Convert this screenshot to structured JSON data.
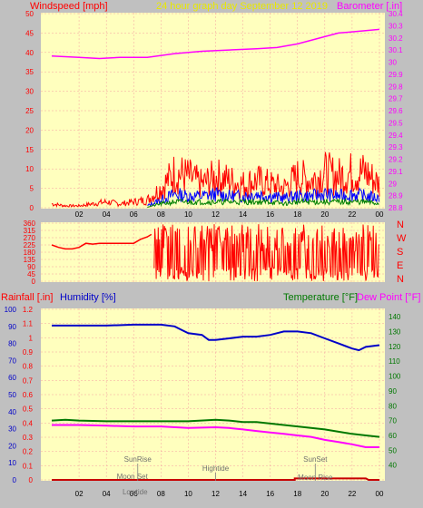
{
  "header": {
    "windspeed_label": "Windspeed [mph]",
    "title": "24 hour graph day   September 12 2019",
    "barometer_label": "Barometer [.in]"
  },
  "panel2": {
    "compass": [
      "N",
      "W",
      "S",
      "E",
      "N"
    ]
  },
  "panel3": {
    "rainfall_label": "Rainfall [.in]",
    "humidity_label": "Humidity [%]",
    "temperature_label": "Temperature [°F]",
    "dewpoint_label": "Dew Point [°F]"
  },
  "events": {
    "sunrise": "SunRise",
    "moonset": "Moon Set",
    "lowtide": "Lowtide",
    "hightide": "Hightide",
    "sunset": "SunSet",
    "moonrise": "Moon Rise"
  },
  "colors": {
    "background": "#c0c0c0",
    "plot_bg": "#ffffbe",
    "wind": "#ff0000",
    "gust_avg": "#0000ff",
    "wind_low": "#008000",
    "barometer": "#ff00ff",
    "humidity": "#0000c8",
    "temperature": "#007800",
    "dewpoint": "#ff00ff",
    "rainfall": "#c80000",
    "title": "#e8e800"
  },
  "chart_data": [
    {
      "type": "line",
      "name": "wind-barometer",
      "x_ticks": [
        "02",
        "04",
        "06",
        "08",
        "10",
        "12",
        "14",
        "16",
        "18",
        "20",
        "22",
        "00"
      ],
      "y_left_ticks": [
        "0",
        "5",
        "10",
        "15",
        "20",
        "25",
        "30",
        "35",
        "40",
        "45",
        "50"
      ],
      "y_left_lim": [
        0,
        50
      ],
      "y_right_ticks": [
        "28.8",
        "28.9",
        "29",
        "29.1",
        "29.2",
        "29.3",
        "29.4",
        "29.5",
        "29.6",
        "29.7",
        "29.8",
        "29.9",
        "30",
        "30.1",
        "30.2",
        "30.3",
        "30.4"
      ],
      "y_right_lim": [
        28.8,
        30.4
      ],
      "barometer": {
        "x": [
          0,
          2,
          3.5,
          5,
          7,
          9,
          11,
          13,
          15,
          16.5,
          18,
          19,
          20,
          21,
          22,
          23,
          24
        ],
        "y": [
          30.05,
          30.04,
          30.03,
          30.04,
          30.04,
          30.07,
          30.09,
          30.1,
          30.11,
          30.12,
          30.15,
          30.18,
          30.21,
          30.24,
          30.25,
          30.26,
          30.27
        ]
      },
      "wind_speed": {
        "x": [
          0,
          1,
          2,
          3,
          4,
          5,
          6,
          7,
          8,
          9,
          10,
          11,
          12,
          13,
          14,
          15,
          16,
          17,
          18,
          19,
          20,
          21,
          22,
          23,
          24
        ],
        "y": [
          1,
          0.5,
          0.5,
          1,
          1.5,
          1,
          1.5,
          2,
          5,
          9,
          8,
          6,
          8,
          7,
          6,
          7,
          6,
          5,
          8,
          7,
          9,
          8,
          9,
          9,
          6
        ]
      },
      "gust_average": {
        "x": [
          7,
          8,
          9,
          10,
          11,
          12,
          13,
          14,
          15,
          16,
          17,
          18,
          19,
          20,
          21,
          22,
          23,
          24
        ],
        "y": [
          0.5,
          2,
          3.5,
          3,
          3,
          3.5,
          3,
          3,
          3.5,
          3,
          2.5,
          3,
          3,
          3.5,
          3,
          3.5,
          3,
          2.5
        ]
      },
      "wind_low": {
        "x": [
          7,
          8,
          9,
          10,
          11,
          12,
          13,
          14,
          15,
          16,
          17,
          18,
          19,
          20,
          21,
          22,
          23,
          24
        ],
        "y": [
          0.2,
          1,
          1.5,
          1.5,
          1.5,
          1.5,
          1.5,
          1.5,
          1.5,
          1.5,
          1,
          1.5,
          1.5,
          1.5,
          1.5,
          1.5,
          1.5,
          1
        ]
      }
    },
    {
      "type": "line",
      "name": "wind-direction",
      "y_ticks": [
        "0",
        "45",
        "90",
        "135",
        "180",
        "225",
        "270",
        "315",
        "360"
      ],
      "ylim": [
        0,
        360
      ],
      "segments": [
        {
          "x": [
            0,
            0.5,
            1,
            1.5,
            2,
            2.5,
            3,
            3.5,
            4,
            4.5,
            5,
            5.5,
            6,
            6.5,
            7,
            7.3
          ],
          "y": [
            225,
            210,
            200,
            200,
            210,
            235,
            230,
            235,
            235,
            235,
            235,
            235,
            235,
            260,
            275,
            290
          ]
        },
        {
          "x": [
            7.5,
            24
          ],
          "y": [
            0,
            360
          ],
          "style": "dense"
        }
      ]
    },
    {
      "type": "line",
      "name": "rain-humidity-temperature",
      "x_ticks": [
        "02",
        "04",
        "06",
        "08",
        "10",
        "12",
        "14",
        "16",
        "18",
        "20",
        "22",
        "00"
      ],
      "y_left_ticks": [
        "0",
        "0.1",
        "0.2",
        "0.3",
        "0.4",
        "0.5",
        "0.6",
        "0.7",
        "0.8",
        "0.9",
        "1",
        "1.1",
        "1.2"
      ],
      "y_left_lim": [
        0,
        1.2
      ],
      "y_humidity_ticks": [
        "0",
        "10",
        "20",
        "30",
        "40",
        "50",
        "60",
        "70",
        "80",
        "90",
        "100"
      ],
      "y_humidity_lim": [
        0,
        100
      ],
      "y_right_ticks": [
        "40",
        "50",
        "60",
        "70",
        "80",
        "90",
        "100",
        "110",
        "120",
        "130",
        "140"
      ],
      "y_right_lim": [
        30,
        145
      ],
      "humidity": {
        "x": [
          0,
          2,
          4,
          6,
          8,
          9,
          9.5,
          10,
          11,
          11.5,
          12,
          13,
          14,
          15,
          16,
          17,
          18,
          19,
          20,
          21,
          22,
          22.5,
          23,
          24
        ],
        "y": [
          90.5,
          90.5,
          90.5,
          91,
          91,
          90,
          88,
          86,
          85,
          82,
          82,
          83,
          84,
          84,
          85,
          87,
          87,
          86,
          83,
          80,
          77,
          76,
          78,
          79
        ]
      },
      "temperature": {
        "x": [
          0,
          1,
          2,
          4,
          6,
          8,
          10,
          12,
          13,
          14,
          15,
          16,
          17,
          18,
          19,
          20,
          21,
          22,
          23,
          24
        ],
        "y": [
          70,
          70.5,
          70,
          69.5,
          69.5,
          69.5,
          69.5,
          70.5,
          70,
          69,
          69,
          68,
          67,
          66,
          65,
          64,
          62.5,
          61,
          60,
          59
        ]
      },
      "dewpoint": {
        "x": [
          0,
          1,
          2,
          4,
          6,
          8,
          10,
          12,
          13,
          14,
          15,
          16,
          17,
          18,
          19,
          20,
          21,
          22,
          23,
          24
        ],
        "y": [
          67,
          67,
          67,
          66.5,
          66,
          66,
          65,
          65.5,
          65,
          64,
          63,
          62,
          61,
          60,
          59,
          57,
          55.5,
          54,
          52,
          52
        ]
      },
      "rainfall": {
        "x": [
          0,
          17.8,
          17.8,
          23,
          23.2,
          24
        ],
        "y": [
          0,
          0,
          0.01,
          0.01,
          0,
          0
        ]
      },
      "events": [
        {
          "key": "sunrise",
          "x": 6.3
        },
        {
          "key": "moonset",
          "x": 5.9
        },
        {
          "key": "lowtide",
          "x": 6.1
        },
        {
          "key": "hightide",
          "x": 12.0
        },
        {
          "key": "sunset",
          "x": 19.3
        },
        {
          "key": "moonrise",
          "x": 19.3
        }
      ]
    }
  ]
}
